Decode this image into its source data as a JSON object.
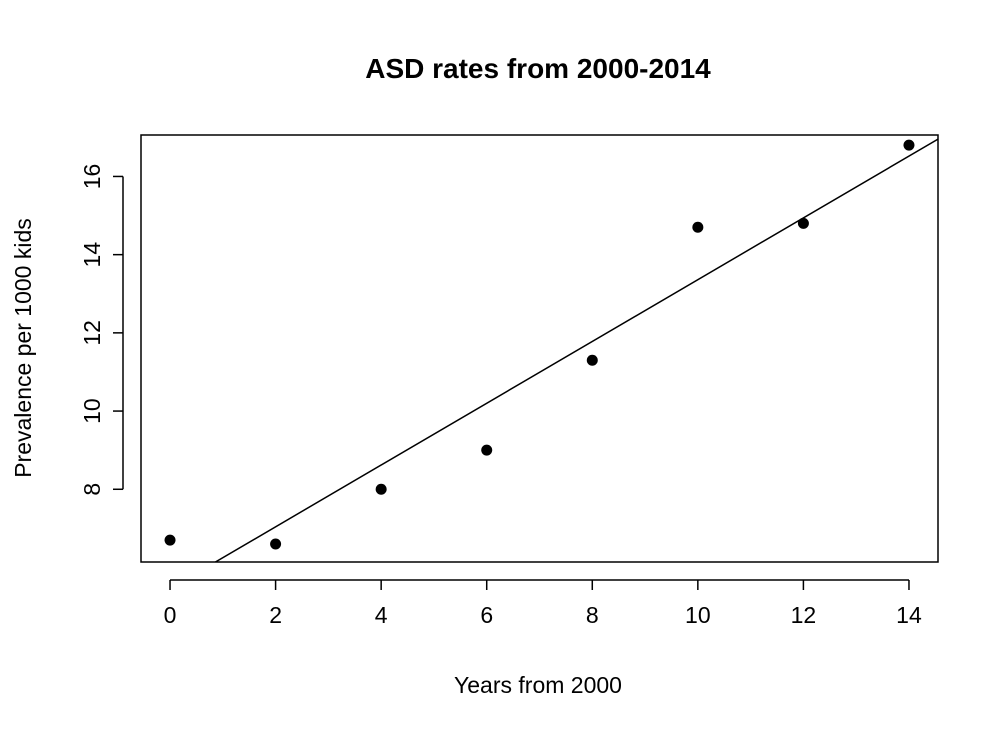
{
  "chart_data": {
    "type": "scatter",
    "title": "ASD rates from 2000-2014",
    "xlabel": "Years from 2000",
    "ylabel": "Prevalence per 1000 kids",
    "xlim": [
      -0.55,
      14.55
    ],
    "ylim": [
      6.14,
      17.06
    ],
    "x_ticks": [
      0,
      2,
      4,
      6,
      8,
      10,
      12,
      14
    ],
    "y_ticks": [
      8,
      10,
      12,
      14,
      16
    ],
    "grid": false,
    "legend": "none",
    "points": [
      {
        "x": 0,
        "y": 6.7
      },
      {
        "x": 2,
        "y": 6.6
      },
      {
        "x": 4,
        "y": 8.0
      },
      {
        "x": 6,
        "y": 9.0
      },
      {
        "x": 8,
        "y": 11.3
      },
      {
        "x": 10,
        "y": 14.7
      },
      {
        "x": 12,
        "y": 14.8
      },
      {
        "x": 14,
        "y": 16.8
      }
    ],
    "trend_line": {
      "intercept": 5.46,
      "slope": 0.79
    },
    "colors": {
      "points": "#000000",
      "line": "#000000",
      "axes": "#000000"
    }
  }
}
